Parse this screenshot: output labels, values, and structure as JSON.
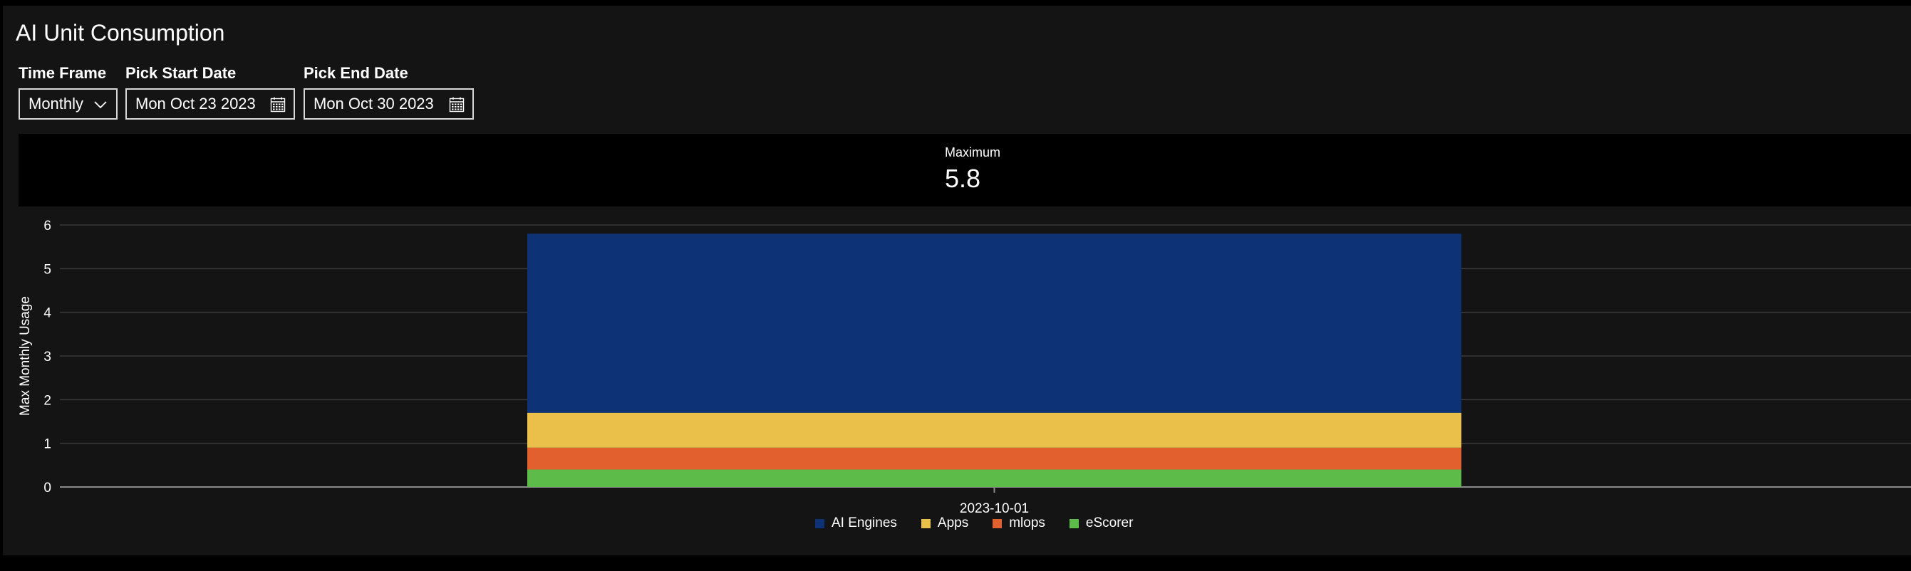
{
  "page": {
    "title": "AI Unit Consumption"
  },
  "filters": {
    "time_frame": {
      "label": "Time Frame",
      "value": "Monthly",
      "icon": "chevron-down-icon"
    },
    "start_date": {
      "label": "Pick Start Date",
      "value": "Mon Oct 23 2023",
      "icon": "calendar-icon"
    },
    "end_date": {
      "label": "Pick End Date",
      "value": "Mon Oct 30 2023",
      "icon": "calendar-icon"
    }
  },
  "kpi": {
    "label": "Maximum",
    "value": "5.8"
  },
  "chart_data": {
    "type": "bar",
    "stacked": true,
    "categories": [
      "2023-10-01"
    ],
    "ylabel": "Max Monthly Usage",
    "xlabel": "",
    "ylim": [
      0,
      6
    ],
    "yticks": [
      0,
      1,
      2,
      3,
      4,
      5,
      6
    ],
    "grid": true,
    "legend_position": "bottom-center",
    "series": [
      {
        "name": "eScorer",
        "color": "#5dbb4a",
        "values": [
          0.4
        ]
      },
      {
        "name": "mlops",
        "color": "#e2602d",
        "values": [
          0.5
        ]
      },
      {
        "name": "Apps",
        "color": "#eac04b",
        "values": [
          0.8
        ]
      },
      {
        "name": "AI Engines",
        "color": "#0e3276",
        "values": [
          4.1
        ]
      }
    ],
    "legend_order": [
      "AI Engines",
      "Apps",
      "mlops",
      "eScorer"
    ]
  }
}
